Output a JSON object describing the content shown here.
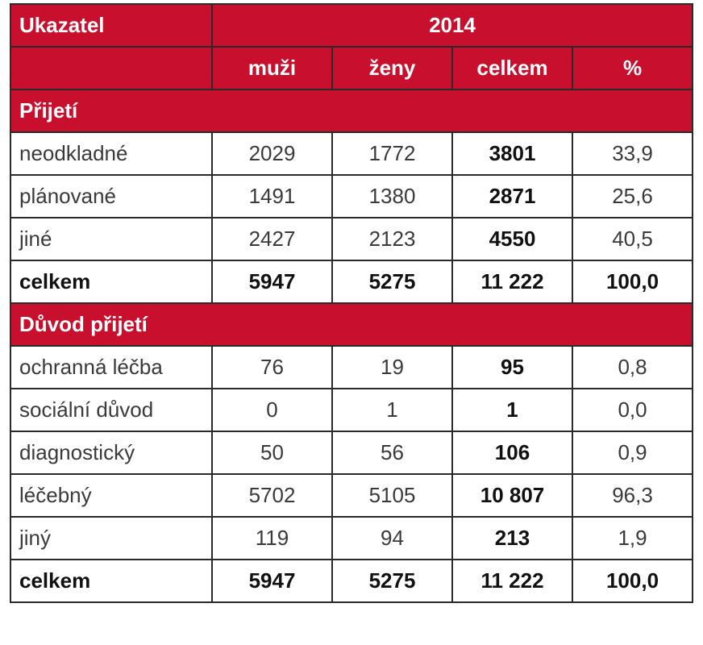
{
  "header": {
    "indicator_label": "Ukazatel",
    "year": "2014",
    "columns": [
      "muži",
      "ženy",
      "celkem",
      "%"
    ]
  },
  "sections": [
    {
      "title": "Přijetí",
      "rows": [
        {
          "label": "neodkladné",
          "muzi": "2029",
          "zeny": "1772",
          "celkem": "3801",
          "pct": "33,9"
        },
        {
          "label": "plánované",
          "muzi": "1491",
          "zeny": "1380",
          "celkem": "2871",
          "pct": "25,6"
        },
        {
          "label": "jiné",
          "muzi": "2427",
          "zeny": "2123",
          "celkem": "4550",
          "pct": "40,5"
        }
      ],
      "total": {
        "label": "celkem",
        "muzi": "5947",
        "zeny": "5275",
        "celkem": "11 222",
        "pct": "100,0"
      }
    },
    {
      "title": "Důvod přijetí",
      "rows": [
        {
          "label": "ochranná léčba",
          "muzi": "76",
          "zeny": "19",
          "celkem": "95",
          "pct": "0,8"
        },
        {
          "label": "sociální důvod",
          "muzi": "0",
          "zeny": "1",
          "celkem": "1",
          "pct": "0,0"
        },
        {
          "label": "diagnostický",
          "muzi": "50",
          "zeny": "56",
          "celkem": "106",
          "pct": "0,9"
        },
        {
          "label": "léčebný",
          "muzi": "5702",
          "zeny": "5105",
          "celkem": "10 807",
          "pct": "96,3"
        },
        {
          "label": "jiný",
          "muzi": "119",
          "zeny": "94",
          "celkem": "213",
          "pct": "1,9"
        }
      ],
      "total": {
        "label": "celkem",
        "muzi": "5947",
        "zeny": "5275",
        "celkem": "11 222",
        "pct": "100,0"
      }
    }
  ],
  "colors": {
    "header_red": "#c8102e",
    "header_text": "#ffffff",
    "border": "#2a2a2a"
  }
}
